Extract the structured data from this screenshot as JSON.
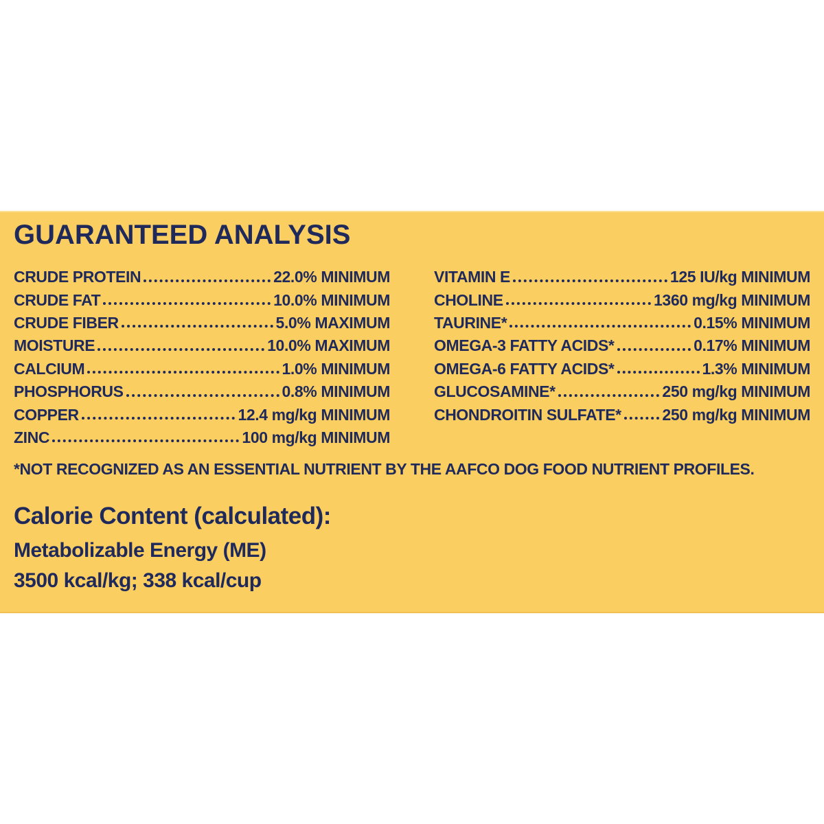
{
  "panel": {
    "title": "GUARANTEED ANALYSIS",
    "columns": {
      "left": [
        {
          "label": "CRUDE PROTEIN",
          "value": "22.0% MINIMUM"
        },
        {
          "label": "CRUDE FAT",
          "value": "10.0% MINIMUM"
        },
        {
          "label": "CRUDE FIBER",
          "value": "5.0% MAXIMUM"
        },
        {
          "label": "MOISTURE",
          "value": "10.0% MAXIMUM"
        },
        {
          "label": "CALCIUM",
          "value": "1.0% MINIMUM"
        },
        {
          "label": "PHOSPHORUS",
          "value": "0.8% MINIMUM"
        },
        {
          "label": "COPPER",
          "value": "12.4 mg/kg MINIMUM"
        },
        {
          "label": "ZINC",
          "value": "100 mg/kg MINIMUM"
        }
      ],
      "right": [
        {
          "label": "VITAMIN E",
          "value": "125 IU/kg MINIMUM"
        },
        {
          "label": "CHOLINE",
          "value": "1360 mg/kg MINIMUM"
        },
        {
          "label": "TAURINE*",
          "value": "0.15% MINIMUM"
        },
        {
          "label": "OMEGA-3 FATTY ACIDS*",
          "value": "0.17% MINIMUM"
        },
        {
          "label": "OMEGA-6 FATTY ACIDS*",
          "value": "1.3% MINIMUM"
        },
        {
          "label": "GLUCOSAMINE*",
          "value": "250 mg/kg MINIMUM"
        },
        {
          "label": "CHONDROITIN SULFATE*",
          "value": "250 mg/kg MINIMUM"
        }
      ]
    },
    "footnote": "*NOT RECOGNIZED AS AN ESSENTIAL NUTRIENT BY THE AAFCO DOG FOOD NUTRIENT PROFILES.",
    "calorie": {
      "heading": "Calorie Content (calculated):",
      "line1": "Metabolizable Energy (ME)",
      "line2": "3500 kcal/kg; 338 kcal/cup"
    },
    "colors": {
      "background": "#FBCE62",
      "text": "#1F2A5B"
    }
  }
}
